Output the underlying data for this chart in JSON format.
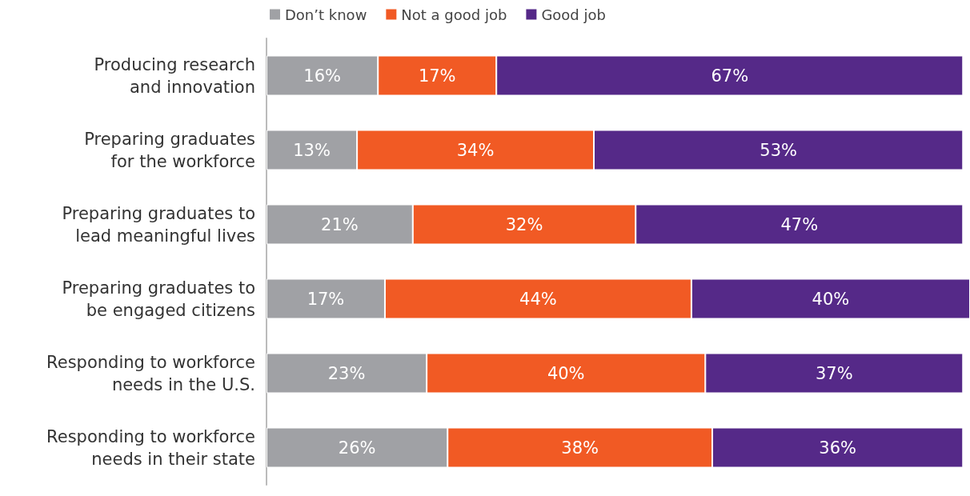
{
  "chart_data": {
    "type": "bar",
    "orientation": "horizontal",
    "stacked": true,
    "legend": "top",
    "tick_labels": "y",
    "categories": [
      "Producing research\nand innovation",
      "Preparing graduates\nfor the workforce",
      "Preparing graduates to\nlead meaningful lives",
      "Preparing graduates to\nbe engaged citizens",
      "Responding to workforce\nneeds in the U.S.",
      "Responding to workforce\nneeds in their state"
    ],
    "series": [
      {
        "name": "Don’t know",
        "color": "#a0a1a5",
        "values": [
          16,
          13,
          21,
          17,
          23,
          26
        ],
        "value_labels": [
          "16%",
          "13%",
          "21%",
          "17%",
          "23%",
          "26%"
        ]
      },
      {
        "name": "Not a good job",
        "color": "#f15a24",
        "values": [
          17,
          34,
          32,
          44,
          40,
          38
        ],
        "value_labels": [
          "17%",
          "34%",
          "32%",
          "44%",
          "40%",
          "38%"
        ]
      },
      {
        "name": "Good job",
        "color": "#552988",
        "values": [
          67,
          53,
          47,
          40,
          37,
          36
        ],
        "value_labels": [
          "67%",
          "53%",
          "47%",
          "40%",
          "37%",
          "36%"
        ]
      }
    ]
  }
}
